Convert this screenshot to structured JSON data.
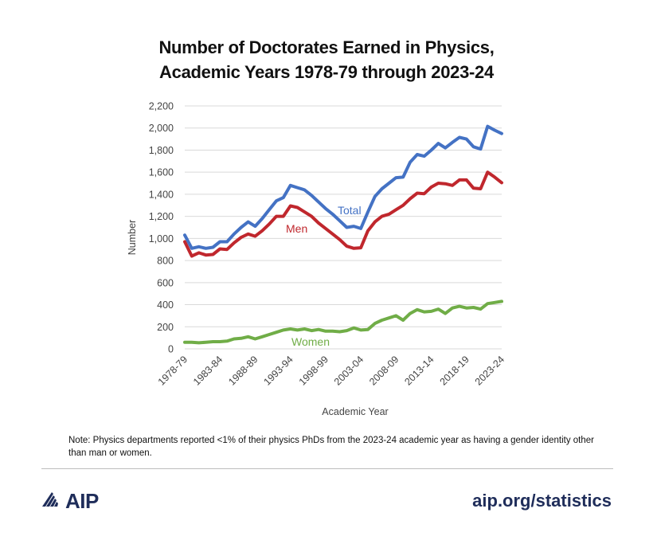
{
  "title_line1": "Number of Doctorates Earned in Physics,",
  "title_line2": "Academic Years 1978-79 through 2023-24",
  "note": "Note: Physics departments reported <1% of their physics PhDs from the 2023-24 academic year as having a gender identity other than man or women.",
  "footer": {
    "logo_text": "AIP",
    "url": "aip.org/statistics"
  },
  "colors": {
    "total": "#4472c4",
    "men": "#c0272d",
    "women": "#70ad47",
    "logo": "#1f2d5a",
    "grid": "#d9d9d9"
  },
  "chart_data": {
    "type": "line",
    "xlabel": "Academic Year",
    "ylabel": "Number",
    "ylim": [
      0,
      2200
    ],
    "yticks": [
      "0",
      "200",
      "400",
      "600",
      "800",
      "1,000",
      "1,200",
      "1,400",
      "1,600",
      "1,800",
      "2,000",
      "2,200"
    ],
    "ytick_values": [
      0,
      200,
      400,
      600,
      800,
      1000,
      1200,
      1400,
      1600,
      1800,
      2000,
      2200
    ],
    "grid": true,
    "legend": "inline labels",
    "x": [
      "1978-79",
      "1979-80",
      "1980-81",
      "1981-82",
      "1982-83",
      "1983-84",
      "1984-85",
      "1985-86",
      "1986-87",
      "1987-88",
      "1988-89",
      "1989-90",
      "1990-91",
      "1991-92",
      "1992-93",
      "1993-94",
      "1994-95",
      "1995-96",
      "1996-97",
      "1997-98",
      "1998-99",
      "1999-00",
      "2000-01",
      "2001-02",
      "2002-03",
      "2003-04",
      "2004-05",
      "2005-06",
      "2006-07",
      "2007-08",
      "2008-09",
      "2009-10",
      "2010-11",
      "2011-12",
      "2012-13",
      "2013-14",
      "2014-15",
      "2015-16",
      "2016-17",
      "2017-18",
      "2018-19",
      "2019-20",
      "2020-21",
      "2021-22",
      "2022-23",
      "2023-24"
    ],
    "xtick_labels": [
      "1978-79",
      "1983-84",
      "1988-89",
      "1993-94",
      "1998-99",
      "2003-04",
      "2008-09",
      "2013-14",
      "2018-19",
      "2023-24"
    ],
    "series": [
      {
        "name": "Total",
        "values": [
          1030,
          910,
          925,
          910,
          920,
          970,
          970,
          1040,
          1100,
          1150,
          1110,
          1180,
          1260,
          1340,
          1370,
          1480,
          1460,
          1440,
          1390,
          1330,
          1270,
          1220,
          1160,
          1100,
          1110,
          1090,
          1240,
          1380,
          1450,
          1500,
          1550,
          1555,
          1690,
          1760,
          1745,
          1800,
          1860,
          1820,
          1870,
          1915,
          1900,
          1830,
          1810,
          2015,
          1980,
          1950
        ]
      },
      {
        "name": "Men",
        "values": [
          970,
          840,
          870,
          850,
          855,
          905,
          900,
          960,
          1010,
          1040,
          1020,
          1070,
          1130,
          1200,
          1200,
          1295,
          1280,
          1240,
          1200,
          1140,
          1090,
          1040,
          990,
          930,
          910,
          915,
          1070,
          1150,
          1200,
          1220,
          1260,
          1300,
          1360,
          1410,
          1405,
          1465,
          1500,
          1495,
          1480,
          1530,
          1530,
          1455,
          1450,
          1600,
          1555,
          1505
        ]
      },
      {
        "name": "Women",
        "values": [
          60,
          60,
          55,
          60,
          65,
          65,
          70,
          90,
          95,
          110,
          90,
          110,
          130,
          150,
          170,
          180,
          170,
          180,
          165,
          175,
          160,
          160,
          155,
          165,
          190,
          170,
          175,
          230,
          260,
          280,
          300,
          260,
          320,
          355,
          335,
          340,
          360,
          320,
          370,
          385,
          370,
          375,
          360,
          410,
          420,
          430
        ]
      }
    ]
  }
}
